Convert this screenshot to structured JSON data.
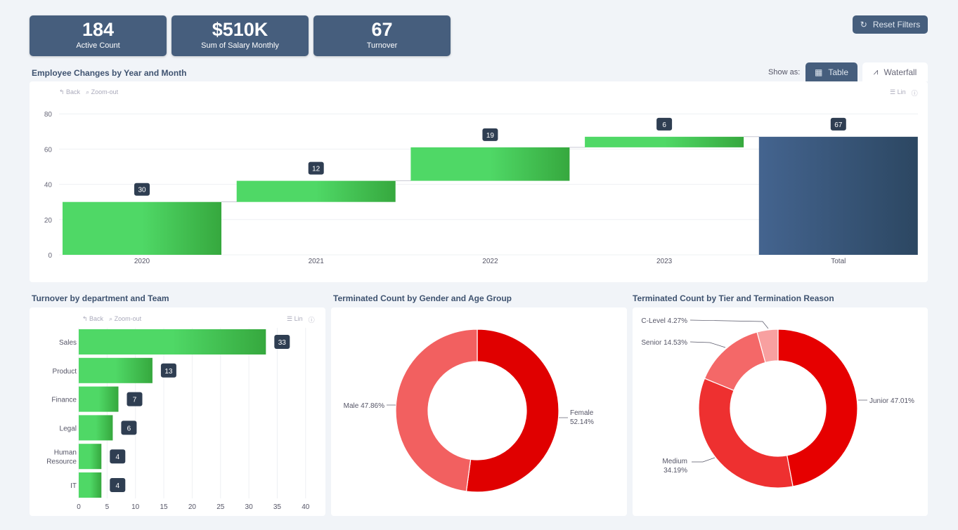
{
  "kpis": [
    {
      "value": "184",
      "label": "Active Count"
    },
    {
      "value": "$510K",
      "label": "Sum of Salary Monthly"
    },
    {
      "value": "67",
      "label": "Turnover"
    }
  ],
  "reset_label": "Reset Filters",
  "show_as": {
    "label": "Show as:",
    "table": "Table",
    "waterfall": "Waterfall",
    "selected": "Table"
  },
  "toolbar": {
    "back": "Back",
    "zoom_out": "Zoom-out",
    "lin": "Lin"
  },
  "colors": {
    "kpi": "#465e7d",
    "increase": "#3cc653",
    "total": "#3f5f8c",
    "donut": "#e60000"
  },
  "chart_data": [
    {
      "type": "bar",
      "subtype": "waterfall",
      "title": "Employee Changes by Year and Month",
      "categories": [
        "2020",
        "2021",
        "2022",
        "2023",
        "Total"
      ],
      "values": [
        30,
        12,
        19,
        6,
        67
      ],
      "ylim": [
        0,
        80
      ],
      "yticks": [
        0,
        20,
        40,
        60,
        80
      ],
      "grid": true
    },
    {
      "type": "bar",
      "orientation": "horizontal",
      "title": "Turnover by department and Team",
      "categories": [
        "Sales",
        "Product",
        "Finance",
        "Legal",
        "Human Resource",
        "IT"
      ],
      "values": [
        33,
        13,
        7,
        6,
        4,
        4
      ],
      "xlim": [
        0,
        40
      ],
      "xticks": [
        0,
        5,
        10,
        15,
        20,
        25,
        30,
        35,
        40
      ],
      "grid": true
    },
    {
      "type": "pie",
      "donut": true,
      "title": "Terminated Count by Gender and Age Group",
      "labels": [
        "Female",
        "Male"
      ],
      "values": [
        52.14,
        47.86
      ],
      "display": [
        "Female 52.14%",
        "Male 47.86%"
      ]
    },
    {
      "type": "pie",
      "donut": true,
      "title": "Terminated Count by Tier and Termination Reason",
      "labels": [
        "Junior",
        "Medium",
        "Senior",
        "C-Level"
      ],
      "values": [
        47.01,
        34.19,
        14.53,
        4.27
      ],
      "display": [
        "Junior 47.01%",
        "Medium 34.19%",
        "Senior 14.53%",
        "C-Level 4.27%"
      ]
    }
  ]
}
